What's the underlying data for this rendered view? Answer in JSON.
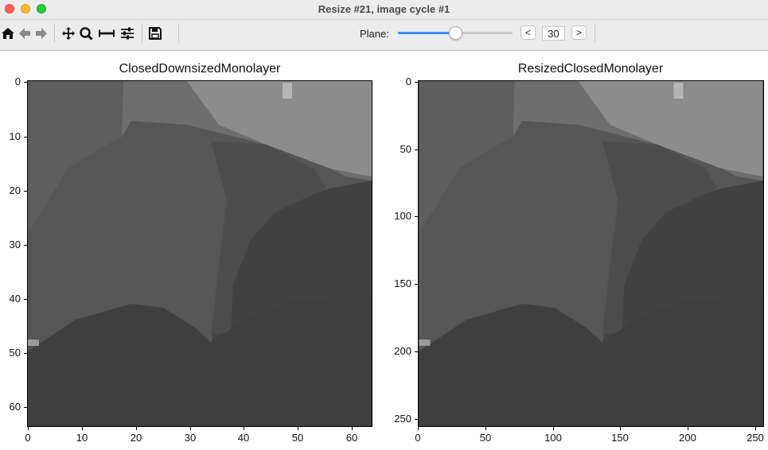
{
  "window": {
    "title": "Resize #21, image cycle #1"
  },
  "toolbar": {
    "icons": [
      "home-icon",
      "back-arrow-icon",
      "forward-arrow-icon",
      "pan-icon",
      "zoom-icon",
      "subplots-icon",
      "configure-icon",
      "save-icon"
    ],
    "plane_label": "Plane:",
    "plane_slider_fraction": 0.5,
    "prev_label": "<",
    "next_label": ">",
    "plane_value": "30"
  },
  "plots": [
    {
      "title": "ClosedDownsizedMonolayer",
      "yticks": [
        "0",
        "10",
        "20",
        "30",
        "40",
        "50",
        "60"
      ],
      "xticks": [
        "0",
        "10",
        "20",
        "30",
        "40",
        "50",
        "60"
      ]
    },
    {
      "title": "ResizedClosedMonolayer",
      "yticks": [
        "0",
        "50",
        "100",
        "150",
        "200",
        "250"
      ],
      "xticks": [
        "0",
        "50",
        "100",
        "150",
        "200",
        "250"
      ]
    }
  ],
  "colors": {
    "dark_gray": "#414141",
    "mid_gray": "#5a5a5a",
    "light_gray": "#8e8e8e",
    "slider_fill": "#3a8ef6"
  }
}
